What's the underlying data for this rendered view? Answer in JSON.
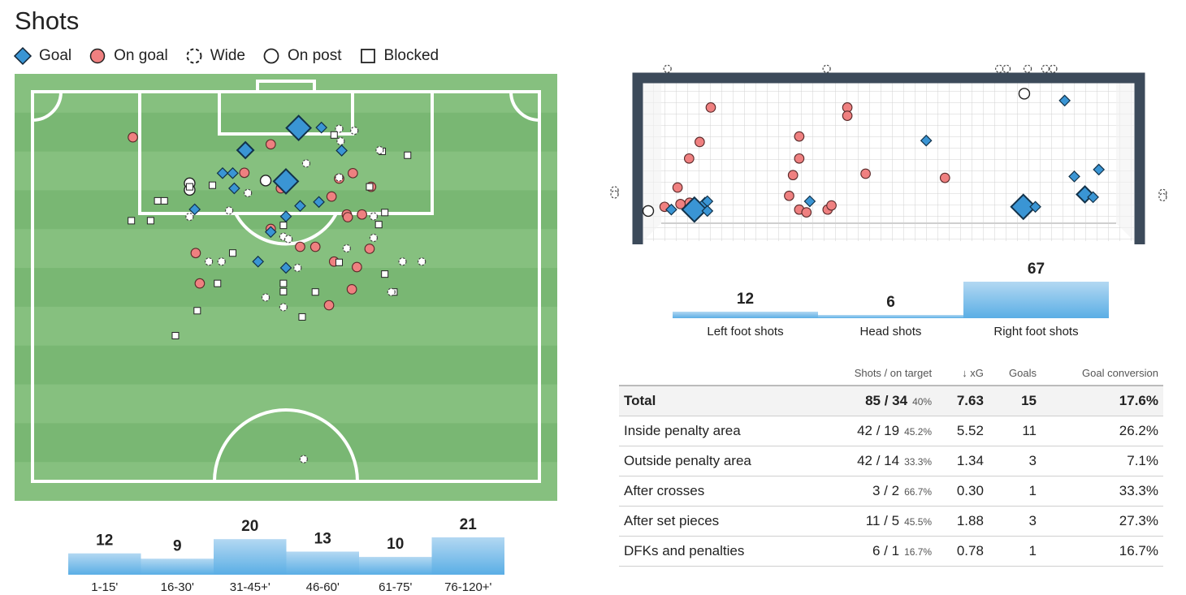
{
  "page": {
    "title": "Shots"
  },
  "legend": [
    {
      "label": "Goal",
      "marker": "diamond"
    },
    {
      "label": "On goal",
      "marker": "circle"
    },
    {
      "label": "Wide",
      "marker": "dashed-circle"
    },
    {
      "label": "On post",
      "marker": "open-circle"
    },
    {
      "label": "Blocked",
      "marker": "square"
    }
  ],
  "colors": {
    "goal": "#3a95d4",
    "on_goal": "#ef8080",
    "pitch_light": "#86c07f",
    "pitch_dark": "#79b773",
    "bar_top": "#a9d2f0",
    "bar_bottom": "#5fb0e6",
    "frame": "#3c4a5a"
  },
  "chart_data": [
    {
      "type": "scatter",
      "chart": "shot-map",
      "x_unit": "pitch width (0-100, left to right)",
      "y_unit": "distance from goal line (0-100, half pitch)",
      "points": [
        {
          "x": 52.5,
          "y": 9.3,
          "kind": "goal",
          "size": 3
        },
        {
          "x": 42.0,
          "y": 15.0,
          "kind": "goal",
          "size": 2
        },
        {
          "x": 50.0,
          "y": 23.0,
          "kind": "goal",
          "size": 3
        },
        {
          "x": 57.0,
          "y": 9.2,
          "kind": "goal",
          "size": 1
        },
        {
          "x": 61.0,
          "y": 15.1,
          "kind": "goal",
          "size": 1
        },
        {
          "x": 37.5,
          "y": 20.9,
          "kind": "goal",
          "size": 1
        },
        {
          "x": 39.5,
          "y": 20.9,
          "kind": "goal",
          "size": 1
        },
        {
          "x": 39.8,
          "y": 24.8,
          "kind": "goal",
          "size": 1
        },
        {
          "x": 56.5,
          "y": 28.3,
          "kind": "goal",
          "size": 1
        },
        {
          "x": 52.8,
          "y": 29.3,
          "kind": "goal",
          "size": 1
        },
        {
          "x": 50.0,
          "y": 32.0,
          "kind": "goal",
          "size": 1
        },
        {
          "x": 32.0,
          "y": 30.2,
          "kind": "goal",
          "size": 1
        },
        {
          "x": 47.0,
          "y": 36.0,
          "kind": "goal",
          "size": 1
        },
        {
          "x": 44.5,
          "y": 43.6,
          "kind": "goal",
          "size": 1
        },
        {
          "x": 50.0,
          "y": 45.2,
          "kind": "goal",
          "size": 1
        },
        {
          "x": 19.8,
          "y": 11.7,
          "kind": "on_goal"
        },
        {
          "x": 47.0,
          "y": 13.5,
          "kind": "on_goal"
        },
        {
          "x": 41.8,
          "y": 20.8,
          "kind": "on_goal"
        },
        {
          "x": 60.5,
          "y": 22.3,
          "kind": "on_goal"
        },
        {
          "x": 63.2,
          "y": 20.9,
          "kind": "on_goal"
        },
        {
          "x": 66.8,
          "y": 24.4,
          "kind": "on_goal"
        },
        {
          "x": 49.0,
          "y": 24.8,
          "kind": "on_goal"
        },
        {
          "x": 59.0,
          "y": 26.9,
          "kind": "on_goal"
        },
        {
          "x": 62.0,
          "y": 31.5,
          "kind": "on_goal"
        },
        {
          "x": 65.0,
          "y": 31.5,
          "kind": "on_goal"
        },
        {
          "x": 62.2,
          "y": 32.2,
          "kind": "on_goal"
        },
        {
          "x": 47.0,
          "y": 35.2,
          "kind": "on_goal"
        },
        {
          "x": 52.8,
          "y": 39.8,
          "kind": "on_goal"
        },
        {
          "x": 55.8,
          "y": 39.8,
          "kind": "on_goal"
        },
        {
          "x": 66.5,
          "y": 40.3,
          "kind": "on_goal"
        },
        {
          "x": 32.2,
          "y": 41.4,
          "kind": "on_goal"
        },
        {
          "x": 59.5,
          "y": 43.6,
          "kind": "on_goal"
        },
        {
          "x": 64.0,
          "y": 45.0,
          "kind": "on_goal"
        },
        {
          "x": 33.0,
          "y": 49.2,
          "kind": "on_goal"
        },
        {
          "x": 63.0,
          "y": 50.7,
          "kind": "on_goal"
        },
        {
          "x": 58.5,
          "y": 54.8,
          "kind": "on_goal"
        },
        {
          "x": 31.0,
          "y": 23.5,
          "kind": "on_post"
        },
        {
          "x": 46.0,
          "y": 22.8,
          "kind": "on_post"
        },
        {
          "x": 31.0,
          "y": 25.2,
          "kind": "on_post"
        },
        {
          "x": 66.5,
          "y": 24.4,
          "kind": "square"
        },
        {
          "x": 69.0,
          "y": 15.3,
          "kind": "square"
        },
        {
          "x": 74.0,
          "y": 16.3,
          "kind": "square"
        },
        {
          "x": 59.5,
          "y": 11.1,
          "kind": "square"
        },
        {
          "x": 31.0,
          "y": 24.4,
          "kind": "square"
        },
        {
          "x": 35.5,
          "y": 24.0,
          "kind": "square"
        },
        {
          "x": 24.7,
          "y": 28.0,
          "kind": "square"
        },
        {
          "x": 26.0,
          "y": 28.0,
          "kind": "square"
        },
        {
          "x": 19.5,
          "y": 33.1,
          "kind": "square"
        },
        {
          "x": 23.3,
          "y": 33.1,
          "kind": "square"
        },
        {
          "x": 49.5,
          "y": 34.3,
          "kind": "square"
        },
        {
          "x": 69.5,
          "y": 31.0,
          "kind": "square"
        },
        {
          "x": 68.3,
          "y": 34.1,
          "kind": "square"
        },
        {
          "x": 39.5,
          "y": 41.4,
          "kind": "square"
        },
        {
          "x": 60.5,
          "y": 43.8,
          "kind": "square"
        },
        {
          "x": 69.5,
          "y": 46.8,
          "kind": "square"
        },
        {
          "x": 36.5,
          "y": 49.2,
          "kind": "square"
        },
        {
          "x": 49.5,
          "y": 49.2,
          "kind": "square"
        },
        {
          "x": 49.5,
          "y": 51.3,
          "kind": "square"
        },
        {
          "x": 55.8,
          "y": 51.4,
          "kind": "square"
        },
        {
          "x": 71.3,
          "y": 51.4,
          "kind": "square"
        },
        {
          "x": 32.5,
          "y": 56.2,
          "kind": "square"
        },
        {
          "x": 53.2,
          "y": 57.8,
          "kind": "square"
        },
        {
          "x": 28.2,
          "y": 62.6,
          "kind": "square"
        },
        {
          "x": 60.5,
          "y": 9.5,
          "kind": "wide"
        },
        {
          "x": 63.5,
          "y": 10.0,
          "kind": "wide"
        },
        {
          "x": 60.8,
          "y": 12.7,
          "kind": "wide"
        },
        {
          "x": 68.5,
          "y": 15.0,
          "kind": "wide"
        },
        {
          "x": 54.0,
          "y": 18.4,
          "kind": "wide"
        },
        {
          "x": 60.5,
          "y": 22.0,
          "kind": "wide"
        },
        {
          "x": 42.5,
          "y": 26.0,
          "kind": "wide"
        },
        {
          "x": 38.8,
          "y": 30.5,
          "kind": "wide"
        },
        {
          "x": 31.0,
          "y": 32.1,
          "kind": "wide"
        },
        {
          "x": 67.3,
          "y": 32.0,
          "kind": "wide"
        },
        {
          "x": 49.5,
          "y": 37.2,
          "kind": "wide"
        },
        {
          "x": 50.5,
          "y": 37.8,
          "kind": "wide"
        },
        {
          "x": 67.3,
          "y": 37.5,
          "kind": "wide"
        },
        {
          "x": 62.0,
          "y": 40.2,
          "kind": "wide"
        },
        {
          "x": 34.8,
          "y": 43.6,
          "kind": "wide"
        },
        {
          "x": 37.3,
          "y": 43.6,
          "kind": "wide"
        },
        {
          "x": 73.0,
          "y": 43.6,
          "kind": "wide"
        },
        {
          "x": 76.8,
          "y": 43.6,
          "kind": "wide"
        },
        {
          "x": 52.3,
          "y": 45.2,
          "kind": "wide"
        },
        {
          "x": 70.8,
          "y": 51.4,
          "kind": "wide"
        },
        {
          "x": 46.0,
          "y": 52.8,
          "kind": "wide"
        },
        {
          "x": 49.5,
          "y": 55.3,
          "kind": "wide"
        },
        {
          "x": 53.5,
          "y": 94.3,
          "kind": "wide"
        }
      ]
    },
    {
      "type": "scatter",
      "chart": "goal-mouth",
      "x_unit": "goal width fraction (0 left post - 1 right post)",
      "y_unit": "height fraction (0 ground - 1 crossbar)",
      "points": [
        {
          "x": 0.048,
          "y": 0.14,
          "kind": "goal",
          "size": 1
        },
        {
          "x": 0.096,
          "y": 0.14,
          "kind": "goal",
          "size": 3
        },
        {
          "x": 0.118,
          "y": 0.19,
          "kind": "goal",
          "size": 1
        },
        {
          "x": 0.123,
          "y": 0.2,
          "kind": "goal",
          "size": 1
        },
        {
          "x": 0.123,
          "y": 0.13,
          "kind": "goal",
          "size": 1
        },
        {
          "x": 0.336,
          "y": 0.2,
          "kind": "goal",
          "size": 1
        },
        {
          "x": 0.578,
          "y": 0.64,
          "kind": "goal",
          "size": 1
        },
        {
          "x": 0.78,
          "y": 0.16,
          "kind": "goal",
          "size": 3
        },
        {
          "x": 0.805,
          "y": 0.16,
          "kind": "goal",
          "size": 1
        },
        {
          "x": 0.866,
          "y": 0.93,
          "kind": "goal",
          "size": 1
        },
        {
          "x": 0.886,
          "y": 0.38,
          "kind": "goal",
          "size": 1
        },
        {
          "x": 0.908,
          "y": 0.25,
          "kind": "goal",
          "size": 2
        },
        {
          "x": 0.925,
          "y": 0.23,
          "kind": "goal",
          "size": 1
        },
        {
          "x": 0.937,
          "y": 0.43,
          "kind": "goal",
          "size": 1
        },
        {
          "x": 0.13,
          "y": 0.88,
          "kind": "on_goal"
        },
        {
          "x": 0.107,
          "y": 0.63,
          "kind": "on_goal"
        },
        {
          "x": 0.085,
          "y": 0.51,
          "kind": "on_goal"
        },
        {
          "x": 0.061,
          "y": 0.3,
          "kind": "on_goal"
        },
        {
          "x": 0.086,
          "y": 0.19,
          "kind": "on_goal"
        },
        {
          "x": 0.067,
          "y": 0.18,
          "kind": "on_goal"
        },
        {
          "x": 0.034,
          "y": 0.16,
          "kind": "on_goal"
        },
        {
          "x": 0.314,
          "y": 0.67,
          "kind": "on_goal"
        },
        {
          "x": 0.314,
          "y": 0.51,
          "kind": "on_goal"
        },
        {
          "x": 0.301,
          "y": 0.39,
          "kind": "on_goal"
        },
        {
          "x": 0.293,
          "y": 0.24,
          "kind": "on_goal"
        },
        {
          "x": 0.314,
          "y": 0.14,
          "kind": "on_goal"
        },
        {
          "x": 0.329,
          "y": 0.12,
          "kind": "on_goal"
        },
        {
          "x": 0.373,
          "y": 0.14,
          "kind": "on_goal"
        },
        {
          "x": 0.381,
          "y": 0.17,
          "kind": "on_goal"
        },
        {
          "x": 0.414,
          "y": 0.88,
          "kind": "on_goal"
        },
        {
          "x": 0.414,
          "y": 0.82,
          "kind": "on_goal"
        },
        {
          "x": 0.452,
          "y": 0.4,
          "kind": "on_goal"
        },
        {
          "x": 0.617,
          "y": 0.37,
          "kind": "on_goal"
        },
        {
          "x": 0.782,
          "y": 0.98,
          "kind": "on_post"
        },
        {
          "x": 0.0,
          "y": 0.13,
          "kind": "on_post"
        }
      ],
      "wide": [
        {
          "x": 0.04,
          "y": 1.16
        },
        {
          "x": 0.371,
          "y": 1.16
        },
        {
          "x": 0.73,
          "y": 1.16
        },
        {
          "x": 0.745,
          "y": 1.16
        },
        {
          "x": 0.789,
          "y": 1.16
        },
        {
          "x": 0.826,
          "y": 1.16
        },
        {
          "x": 0.842,
          "y": 1.16
        },
        {
          "x": -0.07,
          "y": 0.28
        },
        {
          "x": -0.07,
          "y": 0.25
        },
        {
          "x": 1.07,
          "y": 0.26
        },
        {
          "x": 1.07,
          "y": 0.23
        }
      ]
    },
    {
      "type": "bar",
      "chart": "shots-by-body-part",
      "categories": [
        "Left foot shots",
        "Head shots",
        "Right foot shots"
      ],
      "values": [
        12,
        6,
        67
      ]
    },
    {
      "type": "bar",
      "chart": "shots-by-minute",
      "categories": [
        "1-15'",
        "16-30'",
        "31-45+'",
        "46-60'",
        "61-75'",
        "76-120+'"
      ],
      "values": [
        12,
        9,
        20,
        13,
        10,
        21
      ]
    }
  ],
  "table": {
    "headers": [
      "",
      "Shots / on target",
      "↓ xG",
      "Goals",
      "Goal conversion"
    ],
    "rows": [
      {
        "label": "Total",
        "shots": "85 / 34",
        "pct": "40%",
        "xg": "7.63",
        "goals": "15",
        "conv": "17.6%"
      },
      {
        "label": "Inside penalty area",
        "shots": "42 / 19",
        "pct": "45.2%",
        "xg": "5.52",
        "goals": "11",
        "conv": "26.2%"
      },
      {
        "label": "Outside penalty area",
        "shots": "42 / 14",
        "pct": "33.3%",
        "xg": "1.34",
        "goals": "3",
        "conv": "7.1%"
      },
      {
        "label": "After crosses",
        "shots": "3 / 2",
        "pct": "66.7%",
        "xg": "0.30",
        "goals": "1",
        "conv": "33.3%"
      },
      {
        "label": "After set pieces",
        "shots": "11 / 5",
        "pct": "45.5%",
        "xg": "1.88",
        "goals": "3",
        "conv": "27.3%"
      },
      {
        "label": "DFKs and penalties",
        "shots": "6 / 1",
        "pct": "16.7%",
        "xg": "0.78",
        "goals": "1",
        "conv": "16.7%"
      }
    ]
  }
}
